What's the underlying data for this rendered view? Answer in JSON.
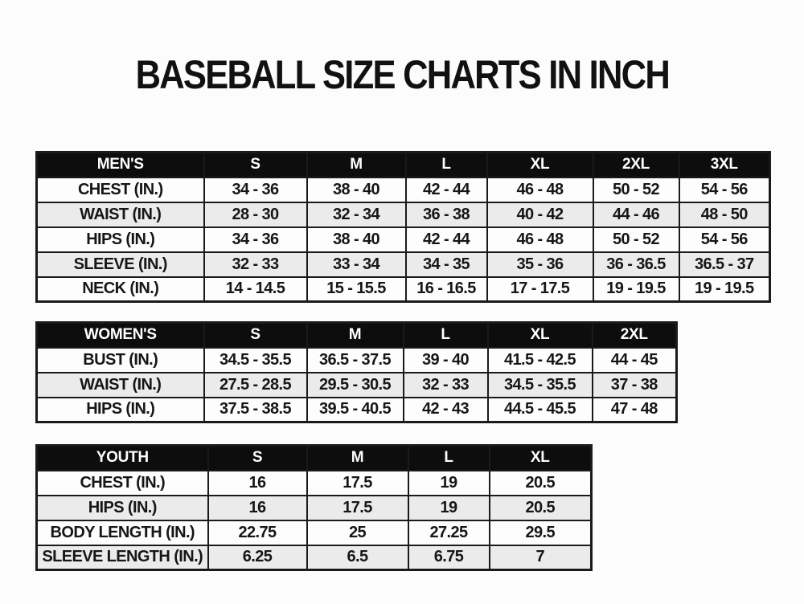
{
  "page": {
    "title": "BASEBALL SIZE CHARTS IN INCH",
    "colors": {
      "background": "#fcfcfc",
      "header_bg": "#0d0d0d",
      "header_text": "#ffffff",
      "row_bg": "#fdfdfd",
      "row_alt_bg": "#ebebeb",
      "border": "#1a1a1a",
      "text": "#161616"
    }
  },
  "tables": [
    {
      "name": "mens",
      "group_label": "MEN'S",
      "header": [
        "MEN'S",
        "S",
        "M",
        "L",
        "XL",
        "2XL",
        "3XL"
      ],
      "rows": [
        [
          "CHEST (IN.)",
          "34 - 36",
          "38 - 40",
          "42 - 44",
          "46 - 48",
          "50 - 52",
          "54 - 56"
        ],
        [
          "WAIST (IN.)",
          "28 - 30",
          "32 - 34",
          "36 - 38",
          "40 - 42",
          "44 - 46",
          "48 - 50"
        ],
        [
          "HIPS (IN.)",
          "34 - 36",
          "38 - 40",
          "42 - 44",
          "46 - 48",
          "50 - 52",
          "54 - 56"
        ],
        [
          "SLEEVE (IN.)",
          "32 - 33",
          "33 - 34",
          "34 - 35",
          "35 - 36",
          "36 - 36.5",
          "36.5 - 37"
        ],
        [
          "NECK (IN.)",
          "14 - 14.5",
          "15 - 15.5",
          "16 - 16.5",
          "17 - 17.5",
          "19 - 19.5",
          "19 - 19.5"
        ]
      ]
    },
    {
      "name": "womens",
      "group_label": "WOMEN'S",
      "header": [
        "WOMEN'S",
        "S",
        "M",
        "L",
        "XL",
        "2XL"
      ],
      "rows": [
        [
          "BUST (IN.)",
          "34.5 - 35.5",
          "36.5 - 37.5",
          "39 - 40",
          "41.5 - 42.5",
          "44 - 45"
        ],
        [
          "WAIST (IN.)",
          "27.5 - 28.5",
          "29.5 - 30.5",
          "32 - 33",
          "34.5 - 35.5",
          "37 - 38"
        ],
        [
          "HIPS (IN.)",
          "37.5 - 38.5",
          "39.5 - 40.5",
          "42 - 43",
          "44.5 - 45.5",
          "47 - 48"
        ]
      ]
    },
    {
      "name": "youth",
      "group_label": "YOUTH",
      "header": [
        "YOUTH",
        "S",
        "M",
        "L",
        "XL"
      ],
      "rows": [
        [
          "CHEST (IN.)",
          "16",
          "17.5",
          "19",
          "20.5"
        ],
        [
          "HIPS (IN.)",
          "16",
          "17.5",
          "19",
          "20.5"
        ],
        [
          "BODY LENGTH (IN.)",
          "22.75",
          "25",
          "27.25",
          "29.5"
        ],
        [
          "SLEEVE LENGTH (IN.)",
          "6.25",
          "6.5",
          "6.75",
          "7"
        ]
      ]
    }
  ]
}
